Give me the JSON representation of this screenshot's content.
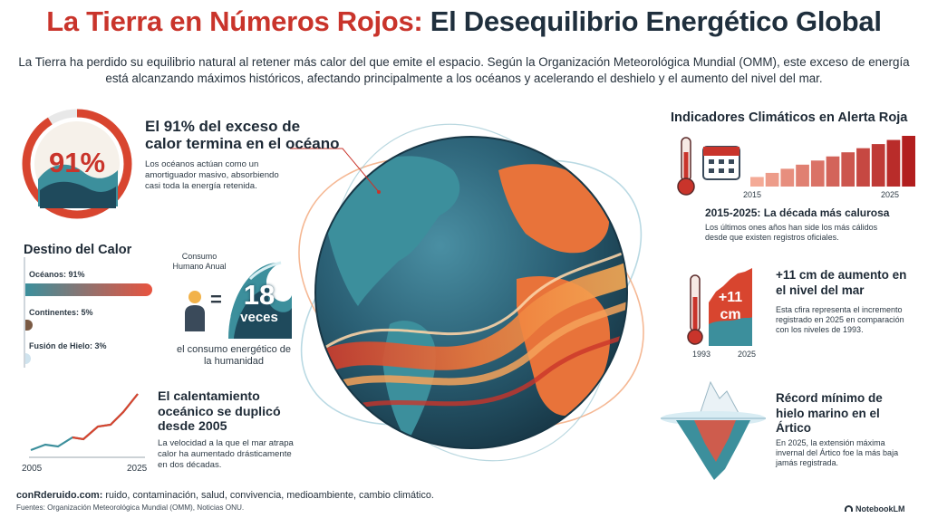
{
  "title": {
    "part1": "La Tierra en Números Rojos:",
    "part2": "El Desequilibrio Energético Global"
  },
  "intro": "La Tierra ha perdido su equilibrio natural al retener más calor del que emite el espacio. Según la Organización Meteorológica Mundial (OMM), este exceso de energía está alcanzando máximos históricos, afectando principalmente a los océanos y acelerando el deshielo y el aumento del nivel del mar.",
  "ocean_heat": {
    "percent_label": "91%",
    "percent_value": 91,
    "heading": "El 91% del exceso de calor termina en el océano",
    "body": "Los océanos actúan como un amortiguador masivo, absorbiendo casi toda la energía retenida."
  },
  "heat_destination": {
    "heading": "Destino del Calor",
    "items": [
      {
        "label": "Océanos: 91%",
        "value": 91,
        "color": "#e8533f"
      },
      {
        "label": "Continentes: 5%",
        "value": 5,
        "color": "#7a5a44"
      },
      {
        "label": "Fusión de Hielo: 3%",
        "value": 3,
        "color": "#cfe3ee"
      }
    ]
  },
  "human_consumption": {
    "caption": "Consumo Humano Anual",
    "equals": "=",
    "number": "18",
    "unit": "veces",
    "footer": "el consumo energético de la humanidad"
  },
  "ocean_warming": {
    "heading": "El calentamiento oceánico se duplicó desde 2005",
    "body": "La velocidad a la que el mar atrapa calor ha aumentado drásticamente en dos décadas.",
    "start_label": "2005",
    "end_label": "2025"
  },
  "indicators": {
    "heading": "Indicadores Climáticos en Alerta Roja",
    "decade": {
      "start_label": "2015",
      "end_label": "2025",
      "bar_values": [
        1,
        2,
        3,
        4,
        5,
        6,
        7,
        8,
        9,
        10,
        11
      ],
      "heading": "2015-2025: La década más calurosa",
      "body": "Los últimos ones años han side los más cálidos desde que existen registros oficiales."
    },
    "sea_level": {
      "badge_number": "+11",
      "badge_unit": "cm",
      "start_label": "1993",
      "end_label": "2025",
      "heading": "+11 cm de aumento en el nivel del mar",
      "body": "Esta cfira representa el incremento registrado en 2025 en comparación con los niveles de 1993."
    },
    "sea_ice": {
      "heading": "Récord mínimo de hielo marino en el Ártico",
      "body": "En 2025, la extensión máxima invernal del Ártico foe la más baja jamás registrada."
    }
  },
  "footer": {
    "site": "conRderuido.com:",
    "topics": " ruido, contaminación, salud, convivencia, medioambiente, cambio climático.",
    "sources": "Fuentes: Organización Meteorológica Mundial (OMM), Noticias ONU.",
    "brand": "NotebookLM"
  },
  "colors": {
    "accent_red": "#c9342b",
    "ocean_teal": "#3c8f9c",
    "ocean_dark": "#1f4a5c",
    "land_orange": "#e8733a"
  }
}
